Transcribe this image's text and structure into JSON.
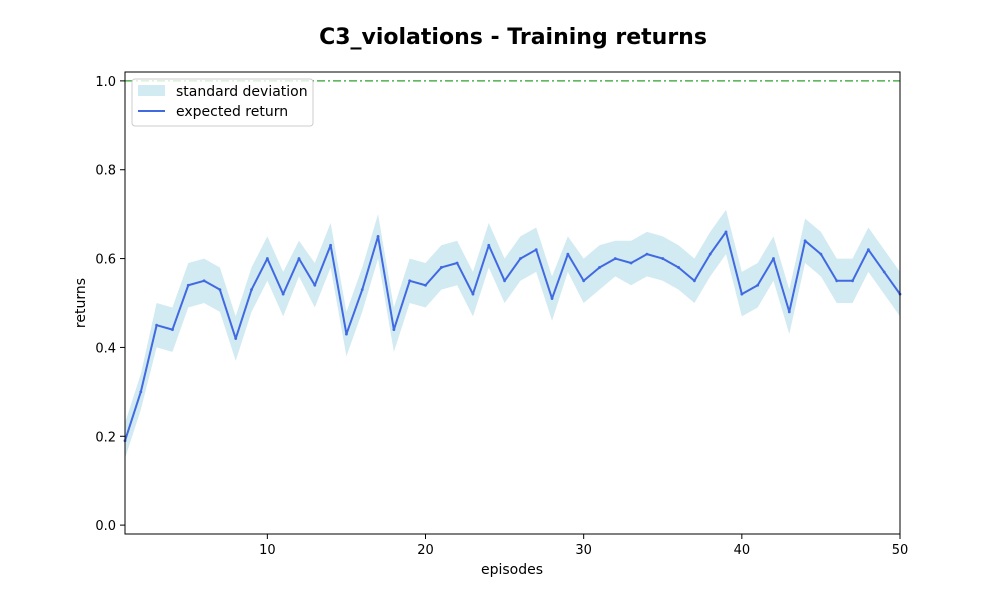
{
  "chart_data": {
    "type": "line",
    "title": "C3_violations - Training returns",
    "xlabel": "episodes",
    "ylabel": "returns",
    "xlim": [
      1,
      50
    ],
    "ylim": [
      -0.02,
      1.02
    ],
    "x_ticks": [
      10,
      20,
      30,
      40,
      50
    ],
    "y_ticks": [
      0.0,
      0.2,
      0.4,
      0.6,
      0.8,
      1.0
    ],
    "x_tick_labels": [
      "10",
      "20",
      "30",
      "40",
      "50"
    ],
    "y_tick_labels": [
      "0.0",
      "0.2",
      "0.4",
      "0.6",
      "0.8",
      "1.0"
    ],
    "grid": false,
    "legend_position": "top-left",
    "x": [
      1,
      2,
      3,
      4,
      5,
      6,
      7,
      8,
      9,
      10,
      11,
      12,
      13,
      14,
      15,
      16,
      17,
      18,
      19,
      20,
      21,
      22,
      23,
      24,
      25,
      26,
      27,
      28,
      29,
      30,
      31,
      32,
      33,
      34,
      35,
      36,
      37,
      38,
      39,
      40,
      41,
      42,
      43,
      44,
      45,
      46,
      47,
      48,
      49,
      50
    ],
    "series": [
      {
        "name": "expected return",
        "color": "#4169e1",
        "values": [
          0.19,
          0.3,
          0.45,
          0.44,
          0.54,
          0.55,
          0.53,
          0.42,
          0.53,
          0.6,
          0.52,
          0.6,
          0.54,
          0.63,
          0.43,
          0.53,
          0.65,
          0.44,
          0.55,
          0.54,
          0.58,
          0.59,
          0.52,
          0.63,
          0.55,
          0.6,
          0.62,
          0.51,
          0.61,
          0.55,
          0.58,
          0.6,
          0.59,
          0.61,
          0.6,
          0.58,
          0.55,
          0.61,
          0.66,
          0.52,
          0.54,
          0.6,
          0.48,
          0.64,
          0.61,
          0.55,
          0.55,
          0.62,
          0.57,
          0.52
        ]
      }
    ],
    "band": {
      "name": "standard deviation",
      "color": "#add8e6",
      "upper": [
        0.23,
        0.34,
        0.5,
        0.49,
        0.59,
        0.6,
        0.58,
        0.47,
        0.58,
        0.65,
        0.57,
        0.64,
        0.59,
        0.68,
        0.48,
        0.58,
        0.7,
        0.49,
        0.6,
        0.59,
        0.63,
        0.64,
        0.57,
        0.68,
        0.6,
        0.65,
        0.67,
        0.56,
        0.65,
        0.6,
        0.63,
        0.64,
        0.64,
        0.66,
        0.65,
        0.63,
        0.6,
        0.66,
        0.71,
        0.57,
        0.59,
        0.65,
        0.53,
        0.69,
        0.66,
        0.6,
        0.6,
        0.67,
        0.62,
        0.57
      ],
      "lower": [
        0.15,
        0.26,
        0.4,
        0.39,
        0.49,
        0.5,
        0.48,
        0.37,
        0.48,
        0.55,
        0.47,
        0.56,
        0.49,
        0.58,
        0.38,
        0.48,
        0.6,
        0.39,
        0.5,
        0.49,
        0.53,
        0.54,
        0.47,
        0.58,
        0.5,
        0.55,
        0.57,
        0.46,
        0.57,
        0.5,
        0.53,
        0.56,
        0.54,
        0.56,
        0.55,
        0.53,
        0.5,
        0.56,
        0.61,
        0.47,
        0.49,
        0.55,
        0.43,
        0.59,
        0.56,
        0.5,
        0.5,
        0.57,
        0.52,
        0.47
      ]
    },
    "reference_line": {
      "y": 1.0,
      "color": "#2ca02c",
      "style": "dash-dot"
    }
  }
}
